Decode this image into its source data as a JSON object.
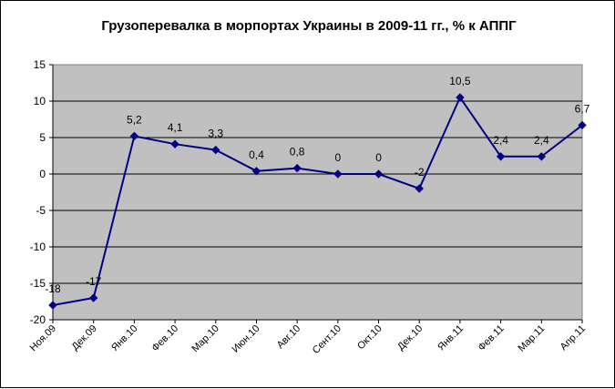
{
  "chart_data": {
    "type": "line",
    "title": "Грузоперевалка в морпортах Украины в 2009-11 гг., % к АППГ",
    "xlabel": "",
    "ylabel": "",
    "categories": [
      "Ноя.09",
      "Дек.09",
      "Янв.10",
      "Фев.10",
      "Мар.10",
      "Июн.10",
      "Авг.10",
      "Сент.10",
      "Окт.10",
      "Дек.10",
      "Янв.11",
      "Фев.11",
      "Мар.11",
      "Апр.11"
    ],
    "series": [
      {
        "values": [
          -18,
          -17,
          5.2,
          4.1,
          3.3,
          0.4,
          0.8,
          0,
          0,
          -2,
          10.5,
          2.4,
          2.4,
          6.7
        ],
        "labels": [
          "-18",
          "-17",
          "5,2",
          "4,1",
          "3,3",
          "0,4",
          "0,8",
          "0",
          "0",
          "-2",
          "10,5",
          "2,4",
          "2,4",
          "6,7"
        ],
        "color": "#000080"
      }
    ],
    "yticks": [
      "15",
      "10",
      "5",
      "0",
      "-5",
      "-10",
      "-15",
      "-20"
    ],
    "ylim": [
      -20,
      15
    ],
    "grid": true,
    "legend": "none",
    "plot_background": "#c0c0c0"
  }
}
